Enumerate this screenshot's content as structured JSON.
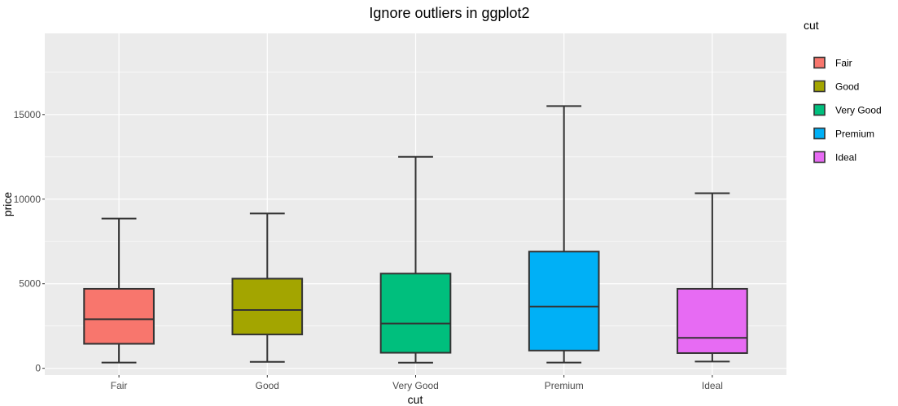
{
  "chart_data": {
    "type": "boxplot",
    "title": "Ignore outliers in ggplot2",
    "xlabel": "cut",
    "ylabel": "price",
    "ylim": [
      -400,
      19800
    ],
    "yticks": [
      0,
      5000,
      10000,
      15000
    ],
    "categories": [
      "Fair",
      "Good",
      "Very Good",
      "Premium",
      "Ideal"
    ],
    "boxes": [
      {
        "name": "Fair",
        "min": 337,
        "q1": 1450,
        "median": 2900,
        "q3": 4700,
        "max": 8850,
        "color": "#F8766D"
      },
      {
        "name": "Good",
        "min": 380,
        "q1": 2000,
        "median": 3450,
        "q3": 5300,
        "max": 9150,
        "color": "#A3A500"
      },
      {
        "name": "Very Good",
        "min": 336,
        "q1": 920,
        "median": 2650,
        "q3": 5600,
        "max": 12500,
        "color": "#00BF7D"
      },
      {
        "name": "Premium",
        "min": 340,
        "q1": 1050,
        "median": 3650,
        "q3": 6900,
        "max": 15500,
        "color": "#00B0F6"
      },
      {
        "name": "Ideal",
        "min": 400,
        "q1": 900,
        "median": 1800,
        "q3": 4700,
        "max": 10350,
        "color": "#E76BF3"
      }
    ],
    "legend": {
      "title": "cut",
      "entries": [
        "Fair",
        "Good",
        "Very Good",
        "Premium",
        "Ideal"
      ],
      "placement": "right"
    },
    "grid": true,
    "panel_background": "#EBEBEB",
    "grid_color": "#FFFFFF",
    "outline_color": "#333333"
  }
}
